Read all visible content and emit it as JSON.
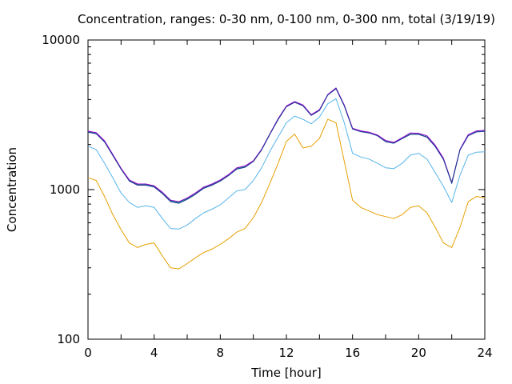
{
  "chart_data": {
    "type": "line",
    "title": "Concentration, ranges: 0-30 nm, 0-100 nm, 0-300 nm, total (3/19/19)",
    "xlabel": "Time [hour]",
    "ylabel": "Concentration",
    "xlim": [
      0,
      24
    ],
    "ylim": [
      100,
      10000
    ],
    "yscale": "log",
    "grid": false,
    "x_ticks": [
      0,
      4,
      8,
      12,
      16,
      20,
      24
    ],
    "y_ticks": [
      100,
      1000,
      10000
    ],
    "x_tick_labels": [
      "0",
      "4",
      "8",
      "12",
      "16",
      "20",
      "24"
    ],
    "y_tick_labels": [
      "100",
      "1000",
      "10000"
    ],
    "x": [
      0,
      0.5,
      1,
      1.5,
      2,
      2.5,
      3,
      3.5,
      4,
      4.5,
      5,
      5.5,
      6,
      6.5,
      7,
      7.5,
      8,
      8.5,
      9,
      9.5,
      10,
      10.5,
      11,
      11.5,
      12,
      12.5,
      13,
      13.5,
      14,
      14.5,
      15,
      15.5,
      16,
      16.5,
      17,
      17.5,
      18,
      18.5,
      19,
      19.5,
      20,
      20.5,
      21,
      21.5,
      22,
      22.5,
      23,
      23.5,
      24
    ],
    "series": [
      {
        "color": "#e69f00",
        "values": [
          1200,
          1150,
          900,
          680,
          540,
          440,
          410,
          430,
          440,
          360,
          300,
          295,
          320,
          350,
          380,
          400,
          430,
          470,
          520,
          550,
          650,
          820,
          1100,
          1500,
          2100,
          2350,
          1900,
          1950,
          2200,
          2950,
          2800,
          1550,
          850,
          760,
          720,
          680,
          660,
          640,
          680,
          760,
          780,
          700,
          560,
          440,
          410,
          560,
          830,
          900,
          880
        ]
      },
      {
        "color": "#56b4e9",
        "values": [
          1950,
          1850,
          1500,
          1200,
          950,
          820,
          760,
          780,
          760,
          640,
          550,
          545,
          580,
          640,
          700,
          740,
          790,
          880,
          980,
          1000,
          1150,
          1400,
          1800,
          2250,
          2800,
          3100,
          2950,
          2750,
          3050,
          3750,
          4050,
          2800,
          1750,
          1650,
          1600,
          1500,
          1400,
          1380,
          1500,
          1700,
          1750,
          1600,
          1300,
          1050,
          820,
          1250,
          1700,
          1780,
          1790
        ]
      },
      {
        "color": "#009e73",
        "values": [
          2440,
          2380,
          2100,
          1700,
          1380,
          1150,
          1080,
          1080,
          1050,
          950,
          840,
          820,
          870,
          940,
          1030,
          1080,
          1150,
          1250,
          1380,
          1420,
          1550,
          1850,
          2350,
          2950,
          3600,
          3850,
          3650,
          3150,
          3400,
          4300,
          4750,
          3650,
          2550,
          2450,
          2400,
          2300,
          2100,
          2050,
          2200,
          2350,
          2350,
          2250,
          1950,
          1600,
          1120,
          1850,
          2300,
          2440,
          2460
        ]
      },
      {
        "color": "#9400d3",
        "values": [
          2460,
          2400,
          2120,
          1720,
          1390,
          1160,
          1090,
          1090,
          1060,
          960,
          850,
          830,
          880,
          950,
          1040,
          1090,
          1160,
          1260,
          1400,
          1440,
          1560,
          1860,
          2360,
          2980,
          3620,
          3880,
          3680,
          3170,
          3420,
          4320,
          4780,
          3680,
          2570,
          2470,
          2420,
          2320,
          2130,
          2070,
          2220,
          2390,
          2380,
          2290,
          1980,
          1620,
          1110,
          1860,
          2330,
          2470,
          2490
        ]
      },
      {
        "color": "#1f3a93",
        "values": [
          2420,
          2360,
          2080,
          1690,
          1370,
          1140,
          1070,
          1070,
          1040,
          940,
          830,
          810,
          860,
          930,
          1020,
          1070,
          1140,
          1240,
          1370,
          1410,
          1540,
          1840,
          2340,
          2940,
          3580,
          3830,
          3630,
          3130,
          3380,
          4280,
          4730,
          3630,
          2540,
          2440,
          2390,
          2290,
          2090,
          2040,
          2190,
          2340,
          2340,
          2240,
          1940,
          1590,
          1100,
          1840,
          2290,
          2430,
          2450
        ]
      }
    ]
  }
}
